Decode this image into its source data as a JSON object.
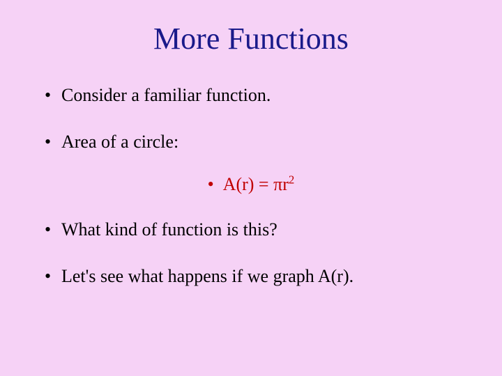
{
  "slide": {
    "background_color": "#f6d2f6",
    "title": {
      "text": "More Functions",
      "color": "#1a1a8a",
      "font_size_pt": 44,
      "font_family": "Times New Roman"
    },
    "bullets": [
      {
        "text": "Consider a familiar function."
      },
      {
        "text": "Area of a circle:"
      },
      {
        "text": "What kind of function is this?"
      },
      {
        "text": "Let's see what happens if we graph A(r)."
      }
    ],
    "formula": {
      "base": "A(r) = πr",
      "exponent": "2",
      "color": "#c00000",
      "font_size_pt": 26
    },
    "body_style": {
      "color": "#000000",
      "font_size_pt": 26,
      "bullet_glyph": "•"
    }
  }
}
